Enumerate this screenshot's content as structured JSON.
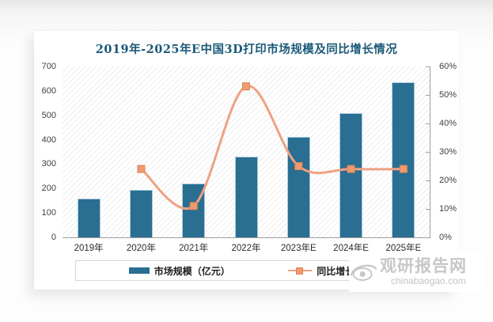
{
  "watermark": {
    "name": "观研报告网",
    "url": "chinabaogao.com"
  },
  "chart_data": {
    "type": "bar",
    "subtype": "combo-bar-line-dual-axis",
    "title": "2019年-2025年E中国3D打印市场规模及同比增长情况",
    "categories": [
      "2019年",
      "2020年",
      "2021年",
      "2022年",
      "2023年E",
      "2024年E",
      "2025年E"
    ],
    "series": [
      {
        "name": "市场规模（亿元）",
        "chart": "bar",
        "axis": "left",
        "color": "#2a6e92",
        "values": [
          160,
          195,
          220,
          330,
          410,
          510,
          635
        ]
      },
      {
        "name": "同比增长",
        "chart": "line",
        "axis": "right",
        "unit": "%",
        "color": "#efa183",
        "marker_color": "#ee9b6f",
        "values": [
          null,
          24,
          11,
          53,
          25,
          24,
          24
        ]
      }
    ],
    "left_axis": {
      "min": 0,
      "max": 700,
      "ticks": [
        "0",
        "100",
        "200",
        "300",
        "400",
        "500",
        "600",
        "700"
      ]
    },
    "right_axis": {
      "min": 0,
      "max": 60,
      "ticks": [
        "0%",
        "10%",
        "20%",
        "30%",
        "40%",
        "50%",
        "60%"
      ]
    },
    "legend_position": "bottom",
    "plot_background": "diagonal-hatch",
    "grid": false
  }
}
